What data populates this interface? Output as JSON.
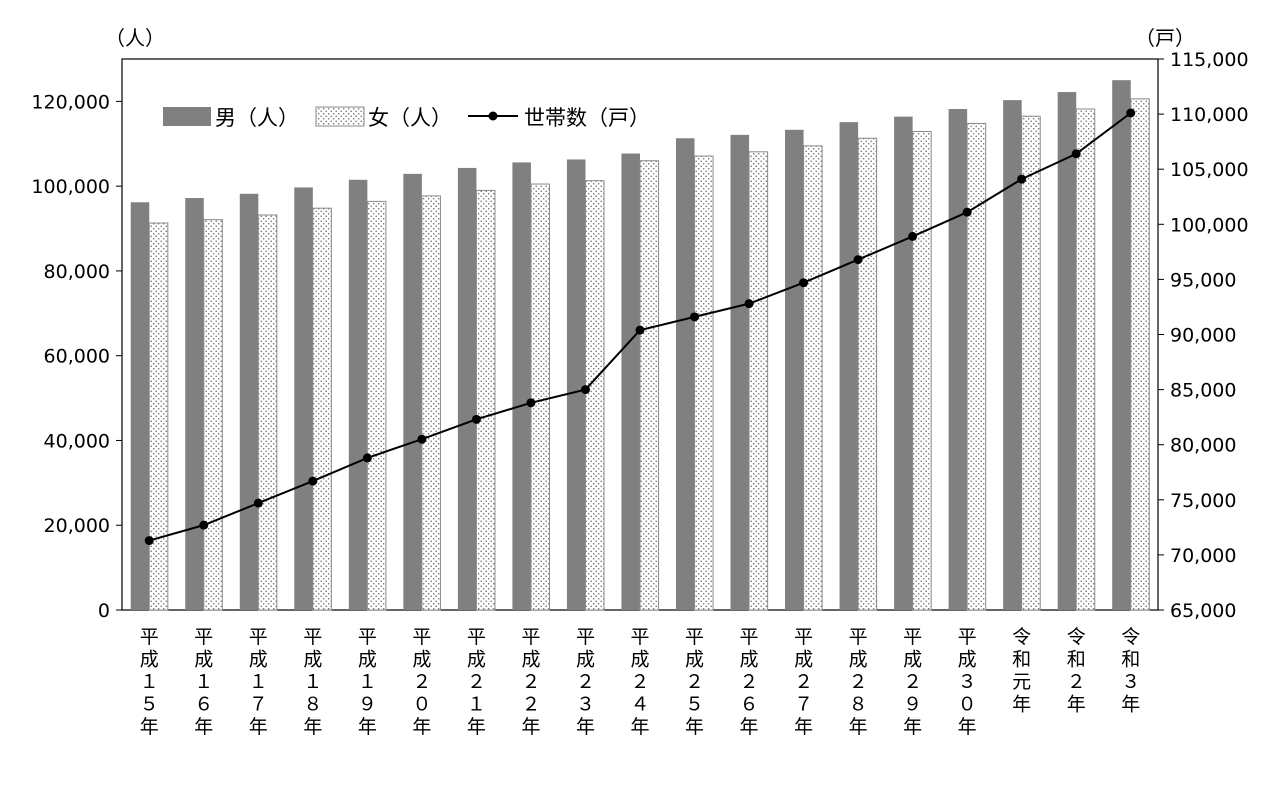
{
  "chart_data": {
    "type": "bar",
    "title": "",
    "y_left_unit": "（人）",
    "y_right_unit": "（戸）",
    "y_left_ticks": [
      "0",
      "20,000",
      "40,000",
      "60,000",
      "80,000",
      "100,000",
      "120,000"
    ],
    "y_right_ticks": [
      "65,000",
      "70,000",
      "75,000",
      "80,000",
      "85,000",
      "90,000",
      "95,000",
      "100,000",
      "105,000",
      "110,000",
      "115,000"
    ],
    "ylim_left": [
      0,
      130000
    ],
    "ylim_right": [
      65000,
      115000
    ],
    "categories": [
      "平成１５年",
      "平成１６年",
      "平成１７年",
      "平成１８年",
      "平成１９年",
      "平成２０年",
      "平成２１年",
      "平成２２年",
      "平成２３年",
      "平成２４年",
      "平成２５年",
      "平成２６年",
      "平成２７年",
      "平成２８年",
      "平成２９年",
      "平成３０年",
      "令和元年",
      "令和２年",
      "令和３年"
    ],
    "series": [
      {
        "name": "男（人）",
        "type": "bar",
        "axis": "left",
        "color": "#808080",
        "values": [
          96200,
          97200,
          98200,
          99700,
          101500,
          102900,
          104300,
          105600,
          106300,
          107700,
          111300,
          112100,
          113300,
          115100,
          116400,
          118200,
          120300,
          122200,
          125000
        ]
      },
      {
        "name": "女（人）",
        "type": "bar",
        "pattern": "dotted",
        "axis": "left",
        "color": "#ffffff",
        "values": [
          91300,
          92100,
          93200,
          94800,
          96400,
          97700,
          99000,
          100500,
          101300,
          106000,
          107100,
          108100,
          109500,
          111300,
          112900,
          114800,
          116500,
          118200,
          120600
        ]
      },
      {
        "name": "世帯数（戸）",
        "type": "line",
        "axis": "right",
        "color": "#000000",
        "values": [
          71300,
          72700,
          74700,
          76700,
          78800,
          80500,
          82300,
          83800,
          85000,
          90400,
          91600,
          92800,
          94700,
          96800,
          98900,
          101100,
          104100,
          106400,
          110100
        ]
      }
    ],
    "legend": "top-left",
    "grid": false
  }
}
